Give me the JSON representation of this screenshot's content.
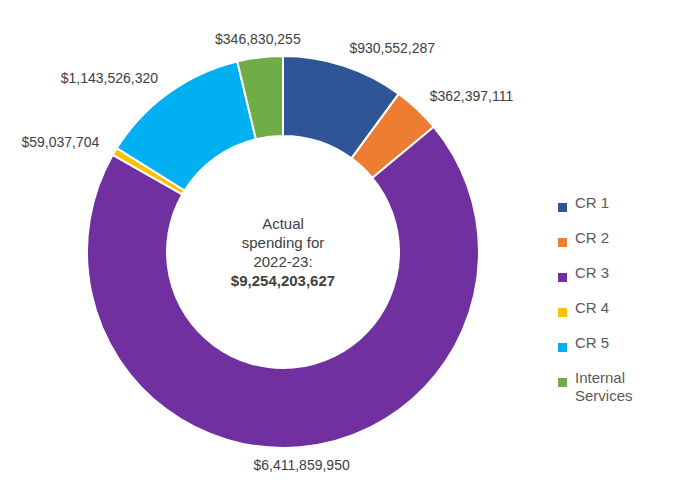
{
  "chart_data": {
    "type": "donut",
    "categories": [
      "CR 1",
      "CR 2",
      "CR 3",
      "CR 4",
      "CR 5",
      "Internal Services"
    ],
    "values": [
      930552287,
      362397111,
      6411859950,
      59037704,
      1143526320,
      346830255
    ],
    "value_labels": [
      "$930,552,287",
      "$362,397,111",
      "$6,411,859,950",
      "$59,037,704",
      "$1,143,526,320",
      "$346,830,255"
    ],
    "colors": [
      "#2f5597",
      "#ed7d31",
      "#7030a0",
      "#ffc000",
      "#00b0f0",
      "#70ad47"
    ],
    "data_labels": true,
    "legend": "right",
    "annotations": [
      "Actual spending for 2022-23:",
      "$9,254,203,627"
    ]
  }
}
